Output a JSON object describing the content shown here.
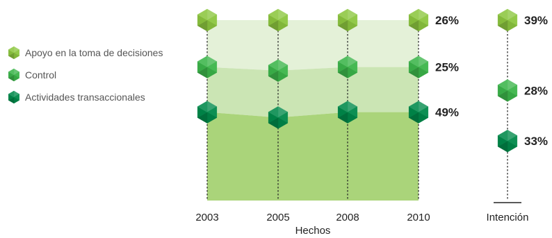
{
  "chart_data": {
    "type": "area",
    "xlabel": "Hechos",
    "x": [
      "2003",
      "2005",
      "2008",
      "2010"
    ],
    "ylim": [
      0,
      100
    ],
    "stacking": "stacked-percent",
    "series": [
      {
        "name": "Actividades transaccionales",
        "values": [
          49,
          46,
          49,
          49
        ]
      },
      {
        "name": "Control",
        "values": [
          25,
          26,
          25,
          25
        ]
      },
      {
        "name": "Apoyo en la toma de decisiones",
        "values": [
          26,
          28,
          26,
          26
        ]
      }
    ],
    "end_labels": [
      "49%",
      "25%",
      "26%"
    ],
    "intention": {
      "label": "Intención",
      "values": [
        {
          "series": "Actividades transaccionales",
          "value": 33,
          "label": "33%"
        },
        {
          "series": "Control",
          "value": 28,
          "label": "28%"
        },
        {
          "series": "Apoyo en la toma de decisiones",
          "value": 39,
          "label": "39%"
        }
      ]
    },
    "legend": {
      "placement": "left",
      "entries": [
        "Apoyo en la toma de decisiones",
        "Control",
        "Actividades transaccionales"
      ]
    },
    "colors": {
      "band_transactional": "#aad47a",
      "band_control": "#cbe5b4",
      "band_decisions": "#e4f1d8",
      "hex_decisions": "#8cc63f",
      "hex_control": "#3cb54a",
      "hex_transactional": "#00894a"
    }
  }
}
